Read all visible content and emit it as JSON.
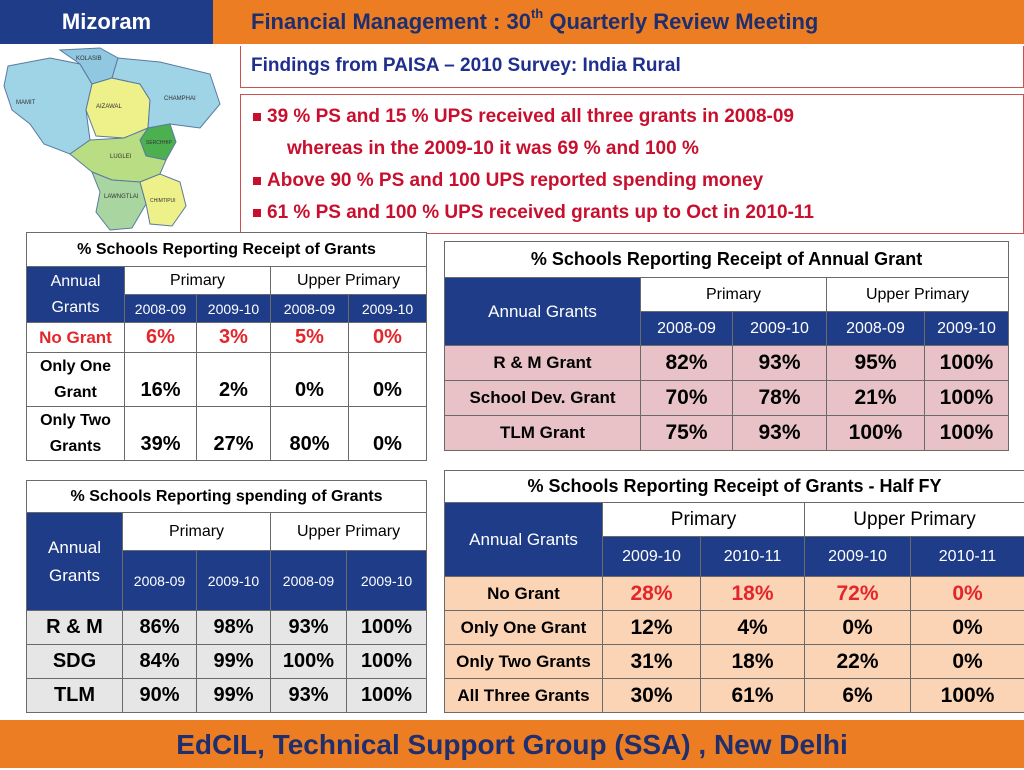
{
  "header": {
    "state": "Mizoram",
    "title_pre": "Financial Management : 30",
    "title_sup": "th",
    "title_post": " Quarterly Review Meeting"
  },
  "map": {
    "districts": [
      "KOLASIB",
      "MAMIT",
      "AIZAWAL",
      "CHAMPHAI",
      "SERCHHIP",
      "LUGLEI",
      "LAWNGTLAI",
      "CHIMTIPUI"
    ]
  },
  "subtitle": "Findings from PAISA – 2010  Survey: India Rural",
  "findings": {
    "line1": "39 % PS and 15 % UPS received all three grants in 2008-09",
    "line1b": "whereas   in the  2009-10 it was 69 % and 100 %",
    "line2": "Above 90 % PS  and 100 UPS reported spending money",
    "line3": "61 % PS and 100 % UPS received grants up to Oct in 2010-11"
  },
  "t1": {
    "caption": "% Schools Reporting Receipt of Grants",
    "col0": "Annual Grants",
    "primary": "Primary",
    "upper": "Upper Primary",
    "years": [
      "2008-09",
      "2009-10",
      "2008-09",
      "2009-10"
    ],
    "rows": [
      {
        "label": "No Grant",
        "values": [
          "6%",
          "3%",
          "5%",
          "0%"
        ]
      },
      {
        "label": "Only One Grant",
        "values": [
          "16%",
          "2%",
          "0%",
          "0%"
        ]
      },
      {
        "label": "Only Two Grants",
        "values": [
          "39%",
          "27%",
          "80%",
          "0%"
        ]
      }
    ]
  },
  "t2": {
    "caption": "% Schools Reporting spending of Grants",
    "col0": "Annual Grants",
    "primary": "Primary",
    "upper": "Upper Primary",
    "years": [
      "2008-09",
      "2009-10",
      "2008-09",
      "2009-10"
    ],
    "rows": [
      {
        "label": "R & M",
        "values": [
          "86%",
          "98%",
          "93%",
          "100%"
        ]
      },
      {
        "label": "SDG",
        "values": [
          "84%",
          "99%",
          "100%",
          "100%"
        ]
      },
      {
        "label": "TLM",
        "values": [
          "90%",
          "99%",
          "93%",
          "100%"
        ]
      }
    ]
  },
  "t3": {
    "caption": "% Schools Reporting Receipt of  Annual Grant",
    "col0": "Annual Grants",
    "primary": "Primary",
    "upper": "Upper Primary",
    "years": [
      "2008-09",
      "2009-10",
      "2008-09",
      "2009-10"
    ],
    "rows": [
      {
        "label": "R & M Grant",
        "values": [
          "82%",
          "93%",
          "95%",
          "100%"
        ]
      },
      {
        "label": "School Dev. Grant",
        "values": [
          "70%",
          "78%",
          "21%",
          "100%"
        ]
      },
      {
        "label": "TLM Grant",
        "values": [
          "75%",
          "93%",
          "100%",
          "100%"
        ]
      }
    ]
  },
  "t4": {
    "caption": "% Schools Reporting Receipt of Grants - Half FY",
    "col0": "Annual Grants",
    "primary": "Primary",
    "upper": "Upper Primary",
    "years": [
      "2009-10",
      "2010-11",
      "2009-10",
      "2010-11"
    ],
    "rows": [
      {
        "label": "No Grant",
        "values": [
          "28%",
          "18%",
          "72%",
          "0%"
        ]
      },
      {
        "label": "Only One Grant",
        "values": [
          "12%",
          "4%",
          "0%",
          "0%"
        ]
      },
      {
        "label": "Only Two Grants",
        "values": [
          "31%",
          "18%",
          "22%",
          "0%"
        ]
      },
      {
        "label": "All Three Grants",
        "values": [
          "30%",
          "61%",
          "6%",
          "100%"
        ]
      }
    ]
  },
  "footer": "EdCIL, Technical Support Group (SSA) , New Delhi",
  "colors": {
    "navy": "#1f3c88",
    "orange": "#ed7d23",
    "red": "#e3262b",
    "pink": "#e8c2c6",
    "peach": "#fbd3b5"
  }
}
